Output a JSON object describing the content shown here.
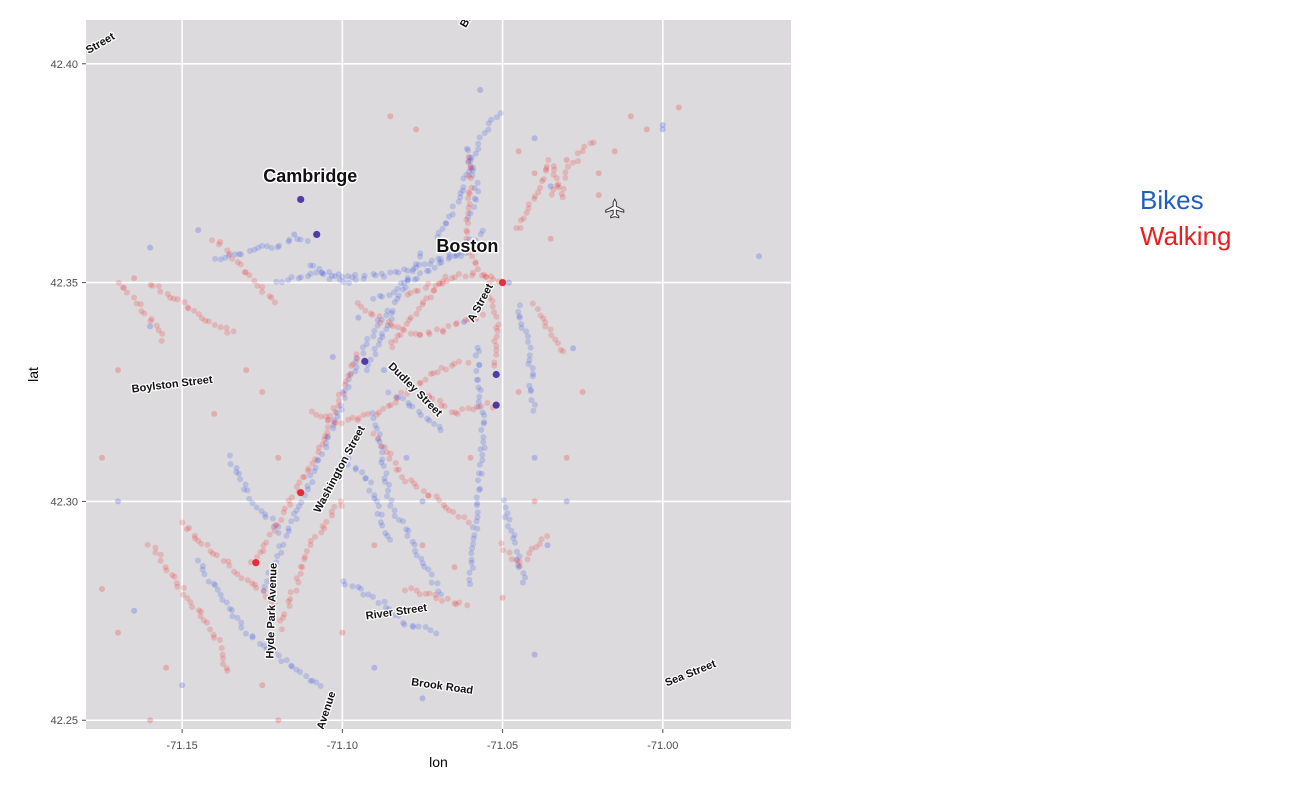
{
  "chart_data": {
    "type": "scatter",
    "title": "",
    "xlabel": "lon",
    "ylabel": "lat",
    "xlim": [
      -71.18,
      -70.96
    ],
    "ylim": [
      42.248,
      42.41
    ],
    "x_ticks": [
      -71.15,
      -71.1,
      -71.05,
      -71.0
    ],
    "y_ticks": [
      42.25,
      42.3,
      42.35,
      42.4
    ],
    "x_tick_labels": [
      "-71.15",
      "-71.10",
      "-71.05",
      "-71.00"
    ],
    "y_tick_labels": [
      "42.25",
      "42.30",
      "42.35",
      "42.40"
    ],
    "grid": true,
    "background_color": "#dcdadd",
    "legend_placement": "right",
    "series": [
      {
        "name": "Bikes",
        "color": "#2f49e6",
        "paths": [
          [
            [
              -71.11,
              42.354
            ],
            [
              -71.1,
              42.351
            ],
            [
              -71.085,
              42.352
            ],
            [
              -71.07,
              42.355
            ],
            [
              -71.06,
              42.357
            ]
          ],
          [
            [
              -71.09,
              42.346
            ],
            [
              -71.075,
              42.352
            ],
            [
              -71.062,
              42.358
            ],
            [
              -71.055,
              42.362
            ]
          ],
          [
            [
              -71.092,
              42.33
            ],
            [
              -71.083,
              42.345
            ],
            [
              -71.075,
              42.358
            ]
          ],
          [
            [
              -71.125,
              42.28
            ],
            [
              -71.115,
              42.296
            ],
            [
              -71.105,
              42.313
            ],
            [
              -71.095,
              42.333
            ],
            [
              -71.085,
              42.345
            ]
          ],
          [
            [
              -71.145,
              42.286
            ],
            [
              -71.13,
              42.27
            ],
            [
              -71.115,
              42.262
            ],
            [
              -71.105,
              42.257
            ]
          ],
          [
            [
              -71.09,
              42.32
            ],
            [
              -71.085,
              42.3
            ],
            [
              -71.078,
              42.29
            ],
            [
              -71.068,
              42.278
            ]
          ],
          [
            [
              -71.058,
              42.335
            ],
            [
              -71.056,
              42.315
            ],
            [
              -71.058,
              42.3
            ],
            [
              -71.06,
              42.28
            ]
          ],
          [
            [
              -71.085,
              42.325
            ],
            [
              -71.075,
              42.32
            ],
            [
              -71.068,
              42.316
            ]
          ],
          [
            [
              -71.1,
              42.31
            ],
            [
              -71.092,
              42.305
            ],
            [
              -71.085,
              42.29
            ]
          ],
          [
            [
              -71.07,
              42.36
            ],
            [
              -71.063,
              42.37
            ],
            [
              -71.06,
              42.378
            ],
            [
              -71.055,
              42.385
            ],
            [
              -71.05,
              42.39
            ]
          ],
          [
            [
              -71.14,
              42.355
            ],
            [
              -71.125,
              42.358
            ],
            [
              -71.11,
              42.36
            ]
          ],
          [
            [
              -71.12,
              42.35
            ],
            [
              -71.108,
              42.352
            ],
            [
              -71.095,
              42.35
            ]
          ],
          [
            [
              -71.1,
              42.282
            ],
            [
              -71.09,
              42.278
            ],
            [
              -71.08,
              42.272
            ],
            [
              -71.07,
              42.27
            ]
          ],
          [
            [
              -71.135,
              42.31
            ],
            [
              -71.128,
              42.3
            ],
            [
              -71.118,
              42.292
            ]
          ],
          [
            [
              -71.045,
              42.345
            ],
            [
              -71.042,
              42.335
            ],
            [
              -71.04,
              42.32
            ]
          ],
          [
            [
              -71.05,
              42.3
            ],
            [
              -71.046,
              42.29
            ],
            [
              -71.043,
              42.28
            ]
          ],
          [
            [
              -71.06,
              42.365
            ],
            [
              -71.058,
              42.372
            ],
            [
              -71.062,
              42.382
            ]
          ]
        ],
        "points": [
          [
            -71.057,
            42.394
          ],
          [
            -71.04,
            42.383
          ],
          [
            -71.035,
            42.372
          ],
          [
            -71.0,
            42.386
          ],
          [
            -70.97,
            42.356
          ],
          [
            -71.16,
            42.358
          ],
          [
            -71.145,
            42.362
          ],
          [
            -71.115,
            42.361
          ],
          [
            -71.095,
            42.342
          ],
          [
            -71.103,
            42.333
          ],
          [
            -71.087,
            42.33
          ],
          [
            -71.062,
            42.341
          ],
          [
            -71.048,
            42.35
          ],
          [
            -71.16,
            42.34
          ],
          [
            -71.17,
            42.3
          ],
          [
            -71.165,
            42.275
          ],
          [
            -71.15,
            42.258
          ],
          [
            -71.13,
            42.245
          ],
          [
            -71.09,
            42.262
          ],
          [
            -71.03,
            42.3
          ],
          [
            -71.036,
            42.29
          ],
          [
            -71.04,
            42.31
          ],
          [
            -71.028,
            42.335
          ],
          [
            -71.075,
            42.3
          ],
          [
            -71.08,
            42.31
          ],
          [
            -71.11,
            42.24
          ],
          [
            -71.075,
            42.255
          ],
          [
            -71.04,
            42.265
          ],
          [
            -71.0,
            42.385
          ]
        ]
      },
      {
        "name": "Walking",
        "color": "#ef2a2a",
        "paths": [
          [
            [
              -71.128,
              42.286
            ],
            [
              -71.12,
              42.295
            ],
            [
              -71.112,
              42.305
            ],
            [
              -71.105,
              42.316
            ],
            [
              -71.1,
              42.325
            ],
            [
              -71.095,
              42.335
            ]
          ],
          [
            [
              -71.11,
              42.32
            ],
            [
              -71.1,
              42.318
            ],
            [
              -71.09,
              42.32
            ],
            [
              -71.08,
              42.325
            ],
            [
              -71.07,
              42.33
            ],
            [
              -71.06,
              42.332
            ]
          ],
          [
            [
              -71.095,
              42.345
            ],
            [
              -71.085,
              42.34
            ],
            [
              -71.075,
              42.338
            ],
            [
              -71.065,
              42.34
            ],
            [
              -71.055,
              42.343
            ]
          ],
          [
            [
              -71.08,
              42.347
            ],
            [
              -71.07,
              42.35
            ],
            [
              -71.06,
              42.352
            ],
            [
              -71.05,
              42.35
            ]
          ],
          [
            [
              -71.085,
              42.335
            ],
            [
              -71.078,
              42.342
            ],
            [
              -71.072,
              42.348
            ],
            [
              -71.066,
              42.352
            ]
          ],
          [
            [
              -71.06,
              42.357
            ],
            [
              -71.055,
              42.35
            ],
            [
              -71.052,
              42.342
            ],
            [
              -71.052,
              42.33
            ]
          ],
          [
            [
              -71.062,
              42.36
            ],
            [
              -71.06,
              42.37
            ],
            [
              -71.06,
              42.38
            ]
          ],
          [
            [
              -71.16,
              42.35
            ],
            [
              -71.15,
              42.345
            ],
            [
              -71.14,
              42.34
            ],
            [
              -71.132,
              42.338
            ]
          ],
          [
            [
              -71.14,
              42.36
            ],
            [
              -71.13,
              42.352
            ],
            [
              -71.12,
              42.345
            ]
          ],
          [
            [
              -71.17,
              42.35
            ],
            [
              -71.16,
              42.342
            ],
            [
              -71.155,
              42.336
            ]
          ],
          [
            [
              -71.15,
              42.295
            ],
            [
              -71.14,
              42.288
            ],
            [
              -71.13,
              42.282
            ],
            [
              -71.12,
              42.276
            ]
          ],
          [
            [
              -71.16,
              42.29
            ],
            [
              -71.15,
              42.28
            ],
            [
              -71.14,
              42.27
            ],
            [
              -71.135,
              42.26
            ]
          ],
          [
            [
              -71.09,
              42.315
            ],
            [
              -71.08,
              42.305
            ],
            [
              -71.07,
              42.3
            ],
            [
              -71.06,
              42.295
            ]
          ],
          [
            [
              -71.075,
              42.325
            ],
            [
              -71.065,
              42.32
            ],
            [
              -71.055,
              42.322
            ],
            [
              -71.05,
              42.322
            ]
          ],
          [
            [
              -71.035,
              42.37
            ],
            [
              -71.03,
              42.375
            ],
            [
              -71.025,
              42.38
            ],
            [
              -71.02,
              42.383
            ]
          ],
          [
            [
              -71.045,
              42.362
            ],
            [
              -71.04,
              42.37
            ],
            [
              -71.035,
              42.378
            ],
            [
              -71.03,
              42.368
            ]
          ],
          [
            [
              -71.1,
              42.3
            ],
            [
              -71.11,
              42.29
            ],
            [
              -71.115,
              42.28
            ],
            [
              -71.12,
              42.27
            ]
          ],
          [
            [
              -71.05,
              42.29
            ],
            [
              -71.045,
              42.285
            ],
            [
              -71.04,
              42.29
            ],
            [
              -71.035,
              42.292
            ]
          ],
          [
            [
              -71.08,
              42.28
            ],
            [
              -71.07,
              42.278
            ],
            [
              -71.06,
              42.276
            ]
          ],
          [
            [
              -71.04,
              42.345
            ],
            [
              -71.035,
              42.338
            ],
            [
              -71.03,
              42.333
            ]
          ]
        ],
        "points": [
          [
            -71.077,
            42.385
          ],
          [
            -71.085,
            42.388
          ],
          [
            -71.01,
            42.388
          ],
          [
            -71.005,
            42.385
          ],
          [
            -70.995,
            42.39
          ],
          [
            -71.015,
            42.38
          ],
          [
            -71.02,
            42.37
          ],
          [
            -71.04,
            42.375
          ],
          [
            -71.165,
            42.351
          ],
          [
            -71.17,
            42.33
          ],
          [
            -71.175,
            42.31
          ],
          [
            -71.175,
            42.28
          ],
          [
            -71.17,
            42.27
          ],
          [
            -71.155,
            42.262
          ],
          [
            -71.16,
            42.25
          ],
          [
            -71.125,
            42.258
          ],
          [
            -71.12,
            42.25
          ],
          [
            -71.14,
            42.32
          ],
          [
            -71.125,
            42.325
          ],
          [
            -71.12,
            42.31
          ],
          [
            -71.075,
            42.29
          ],
          [
            -71.065,
            42.285
          ],
          [
            -71.05,
            42.278
          ],
          [
            -71.06,
            42.31
          ],
          [
            -71.1,
            42.27
          ],
          [
            -71.09,
            42.29
          ],
          [
            -71.13,
            42.33
          ],
          [
            -71.045,
            42.325
          ],
          [
            -71.025,
            42.325
          ],
          [
            -71.03,
            42.31
          ],
          [
            -71.04,
            42.3
          ],
          [
            -71.035,
            42.36
          ],
          [
            -71.045,
            42.38
          ],
          [
            -71.03,
            42.378
          ],
          [
            -71.02,
            42.375
          ]
        ]
      }
    ],
    "highlight_points": [
      {
        "series": "Bikes",
        "x": -71.108,
        "y": 42.361
      },
      {
        "series": "Bikes",
        "x": -71.113,
        "y": 42.369
      },
      {
        "series": "Bikes",
        "x": -71.052,
        "y": 42.329
      },
      {
        "series": "Bikes",
        "x": -71.052,
        "y": 42.322
      },
      {
        "series": "Bikes",
        "x": -71.093,
        "y": 42.332
      },
      {
        "series": "Walking",
        "x": -71.05,
        "y": 42.35
      },
      {
        "series": "Walking",
        "x": -71.127,
        "y": 42.286
      },
      {
        "series": "Walking",
        "x": -71.113,
        "y": 42.302
      }
    ],
    "annotations": [
      {
        "text": "Cambridge",
        "kind": "city",
        "x": -71.11,
        "y": 42.373,
        "angle": 0
      },
      {
        "text": "Boston",
        "kind": "city",
        "x": -71.061,
        "y": 42.357,
        "angle": 0
      },
      {
        "text": "Boylston Street",
        "kind": "street",
        "x": -71.153,
        "y": 42.326,
        "angle": -7
      },
      {
        "text": "Dudley Street",
        "kind": "street",
        "x": -71.078,
        "y": 42.325,
        "angle": 45
      },
      {
        "text": "Washington Street",
        "kind": "street",
        "x": -71.1,
        "y": 42.307,
        "angle": -62
      },
      {
        "text": "A Street",
        "kind": "street",
        "x": -71.056,
        "y": 42.345,
        "angle": -62
      },
      {
        "text": "Hyde Park Avenue",
        "kind": "street",
        "x": -71.121,
        "y": 42.275,
        "angle": -88
      },
      {
        "text": "River Street",
        "kind": "street",
        "x": -71.083,
        "y": 42.274,
        "angle": -8
      },
      {
        "text": "Brook Road",
        "kind": "street",
        "x": -71.069,
        "y": 42.257,
        "angle": 8
      },
      {
        "text": "Sea Street",
        "kind": "street",
        "x": -70.991,
        "y": 42.26,
        "angle": -22
      },
      {
        "text": "Avenue",
        "kind": "street",
        "x": -71.104,
        "y": 42.252,
        "angle": -72
      },
      {
        "text": "Street",
        "kind": "street",
        "x": -71.175,
        "y": 42.404,
        "angle": -30
      },
      {
        "text": "Bro",
        "kind": "street",
        "x": -71.06,
        "y": 42.41,
        "angle": -60
      }
    ],
    "airport_icon": {
      "name": "airplane-icon",
      "x": -71.015,
      "y": 42.367
    }
  },
  "legend": [
    {
      "label": "Bikes",
      "color": "#1f5fbf"
    },
    {
      "label": "Walking",
      "color": "#ee1c1c"
    }
  ]
}
